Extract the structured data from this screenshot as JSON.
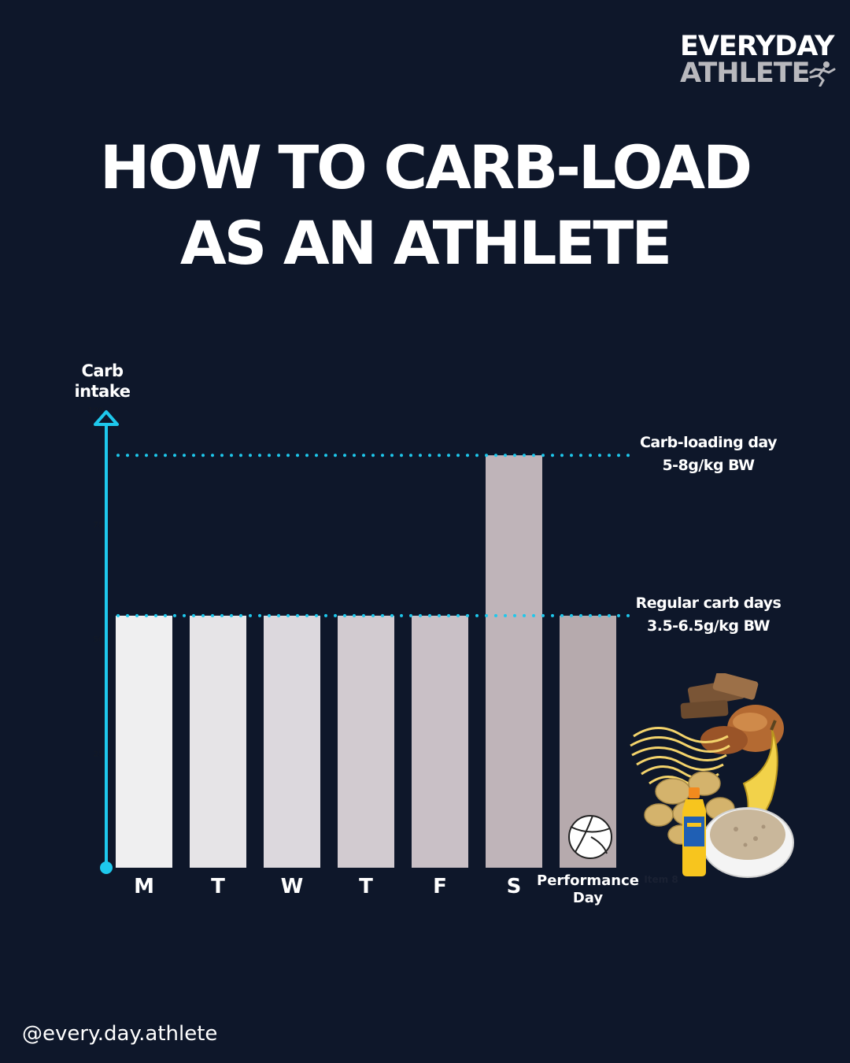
{
  "brand": {
    "line1": "EVERYDAY",
    "line2": "ATHLETE"
  },
  "title": {
    "line1": "HOW TO CARB-LOAD",
    "line2": "AS AN ATHLETE"
  },
  "chart_data": {
    "type": "bar",
    "ylabel": "Carb intake",
    "ylim": [
      0,
      100
    ],
    "yticks": [
      "100",
      "75",
      "50",
      "25"
    ],
    "categories": [
      "M",
      "T",
      "W",
      "T",
      "F",
      "S",
      "Performance Day"
    ],
    "extra_category": "Item 8",
    "values": [
      55,
      55,
      55,
      55,
      55,
      90,
      55
    ],
    "bar_colors": [
      "#efeff0",
      "#e6e4e7",
      "#dcd8dd",
      "#d2cbd0",
      "#c9c0c6",
      "#bfb4b9",
      "#b6aaad"
    ],
    "reference_lines": [
      {
        "value": 90,
        "label_line1": "Carb-loading day",
        "label_line2": "5-8g/kg BW"
      },
      {
        "value": 55,
        "label_line1": "Regular carb days",
        "label_line2": "3.5-6.5g/kg BW"
      }
    ],
    "accent_color": "#1ec8ec",
    "grid": false
  },
  "icons": {
    "performance_day": "volleyball-icon",
    "food": "carb-foods-illustration"
  },
  "footer": {
    "handle": "@every.day.athlete"
  }
}
